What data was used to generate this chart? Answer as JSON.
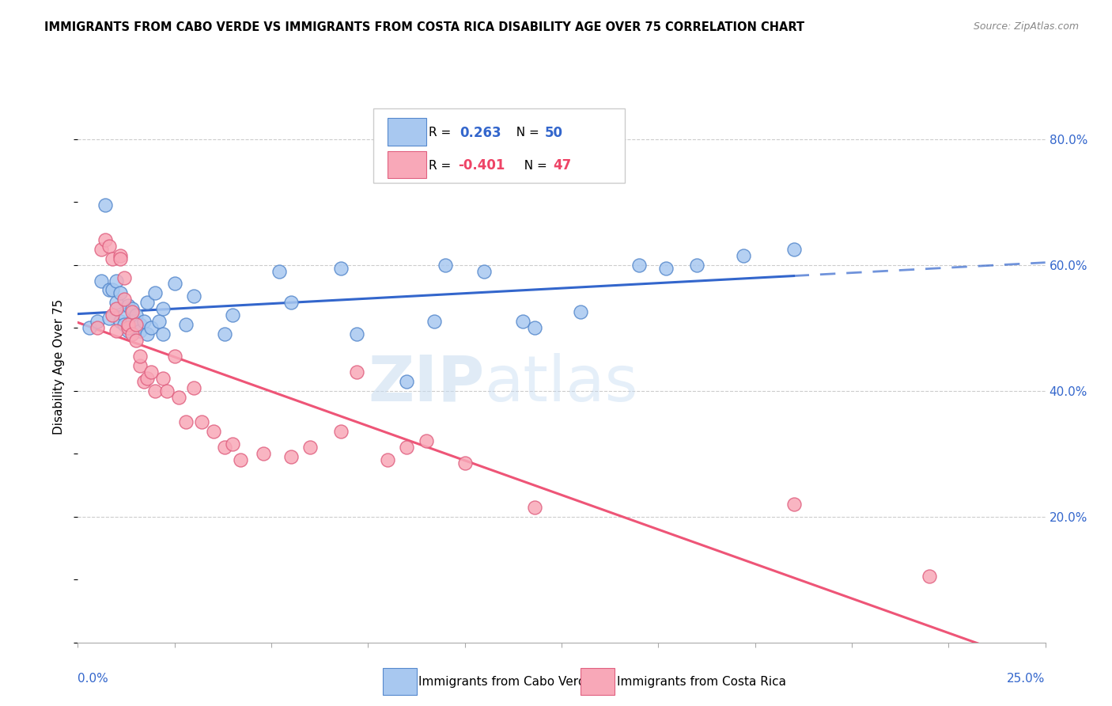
{
  "title": "IMMIGRANTS FROM CABO VERDE VS IMMIGRANTS FROM COSTA RICA DISABILITY AGE OVER 75 CORRELATION CHART",
  "source": "Source: ZipAtlas.com",
  "ylabel": "Disability Age Over 75",
  "xmin": 0.0,
  "xmax": 0.25,
  "ymin": 0.0,
  "ymax": 0.875,
  "cabo_verde_color": "#A8C8F0",
  "costa_rica_color": "#F8A8B8",
  "cabo_verde_edge": "#5588CC",
  "costa_rica_edge": "#E06080",
  "trend_blue": "#3366CC",
  "trend_pink": "#EE5577",
  "cabo_verde_x": [
    0.003,
    0.005,
    0.006,
    0.007,
    0.008,
    0.008,
    0.009,
    0.01,
    0.01,
    0.011,
    0.011,
    0.012,
    0.012,
    0.013,
    0.013,
    0.014,
    0.014,
    0.015,
    0.015,
    0.016,
    0.016,
    0.017,
    0.018,
    0.018,
    0.019,
    0.02,
    0.021,
    0.022,
    0.022,
    0.025,
    0.028,
    0.03,
    0.038,
    0.04,
    0.052,
    0.055,
    0.068,
    0.072,
    0.085,
    0.092,
    0.095,
    0.105,
    0.115,
    0.118,
    0.13,
    0.145,
    0.152,
    0.16,
    0.172,
    0.185
  ],
  "cabo_verde_y": [
    0.5,
    0.51,
    0.575,
    0.695,
    0.56,
    0.515,
    0.56,
    0.575,
    0.54,
    0.51,
    0.555,
    0.52,
    0.505,
    0.535,
    0.495,
    0.53,
    0.51,
    0.52,
    0.5,
    0.505,
    0.495,
    0.51,
    0.49,
    0.54,
    0.5,
    0.555,
    0.51,
    0.49,
    0.53,
    0.57,
    0.505,
    0.55,
    0.49,
    0.52,
    0.59,
    0.54,
    0.595,
    0.49,
    0.415,
    0.51,
    0.6,
    0.59,
    0.51,
    0.5,
    0.525,
    0.6,
    0.595,
    0.6,
    0.615,
    0.625
  ],
  "costa_rica_x": [
    0.005,
    0.006,
    0.007,
    0.008,
    0.009,
    0.009,
    0.01,
    0.01,
    0.011,
    0.011,
    0.012,
    0.012,
    0.013,
    0.013,
    0.014,
    0.014,
    0.015,
    0.015,
    0.016,
    0.016,
    0.017,
    0.018,
    0.019,
    0.02,
    0.022,
    0.023,
    0.025,
    0.026,
    0.028,
    0.03,
    0.032,
    0.035,
    0.038,
    0.04,
    0.042,
    0.048,
    0.055,
    0.06,
    0.068,
    0.072,
    0.08,
    0.085,
    0.09,
    0.1,
    0.118,
    0.185,
    0.22
  ],
  "costa_rica_y": [
    0.5,
    0.625,
    0.64,
    0.63,
    0.52,
    0.61,
    0.53,
    0.495,
    0.615,
    0.61,
    0.545,
    0.58,
    0.5,
    0.505,
    0.49,
    0.525,
    0.48,
    0.505,
    0.44,
    0.455,
    0.415,
    0.42,
    0.43,
    0.4,
    0.42,
    0.4,
    0.455,
    0.39,
    0.35,
    0.405,
    0.35,
    0.335,
    0.31,
    0.315,
    0.29,
    0.3,
    0.295,
    0.31,
    0.335,
    0.43,
    0.29,
    0.31,
    0.32,
    0.285,
    0.215,
    0.22,
    0.105
  ],
  "right_yticks": [
    0.2,
    0.4,
    0.6,
    0.8
  ],
  "right_ytick_labels": [
    "20.0%",
    "40.0%",
    "60.0%",
    "80.0%"
  ]
}
